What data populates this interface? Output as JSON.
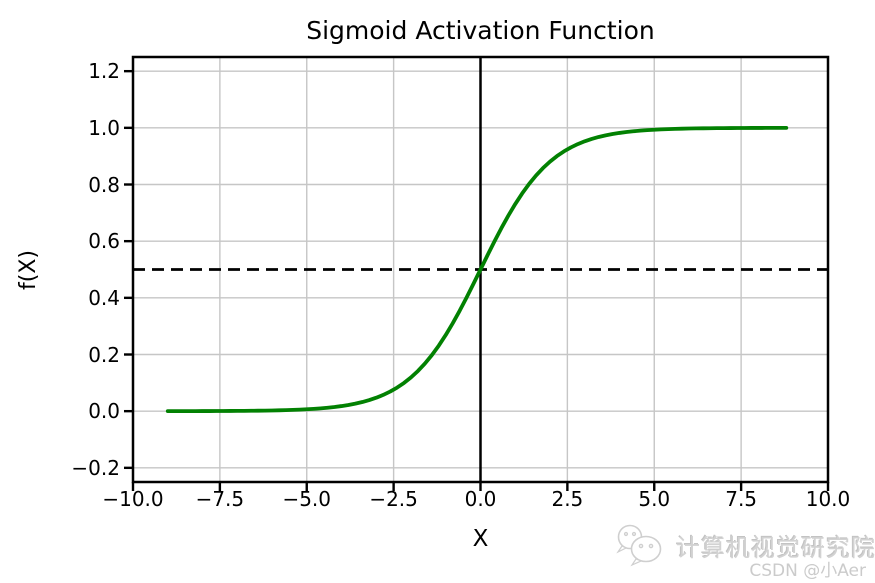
{
  "figure": {
    "background": "#ffffff"
  },
  "chart_data": {
    "type": "line",
    "title": "Sigmoid Activation Function",
    "xlabel": "X",
    "ylabel": "f(X)",
    "xlim": [
      -10,
      10
    ],
    "ylim": [
      -0.25,
      1.25
    ],
    "grid": true,
    "grid_color": "#c6c6c6",
    "axis_color": "#000000",
    "legend": "none",
    "xticks": {
      "values": [
        -10,
        -7.5,
        -5,
        -2.5,
        0,
        2.5,
        5,
        7.5,
        10
      ],
      "labels": [
        "−10.0",
        "−7.5",
        "−5.0",
        "−2.5",
        "0.0",
        "2.5",
        "5.0",
        "7.5",
        "10.0"
      ]
    },
    "yticks": {
      "values": [
        -0.2,
        0.0,
        0.2,
        0.4,
        0.6,
        0.8,
        1.0,
        1.2
      ],
      "labels": [
        "−0.2",
        "0.0",
        "0.2",
        "0.4",
        "0.6",
        "0.8",
        "1.0",
        "1.2"
      ]
    },
    "series": [
      {
        "name": "sigmoid",
        "function": "1/(1+exp(-x))",
        "x_start": -9.0,
        "x_end": 8.8,
        "x_step": 0.2,
        "color": "#028102",
        "linewidth": 3.8,
        "key_points": {
          "x": [
            -9,
            -8,
            -7,
            -6,
            -5,
            -4,
            -3,
            -2,
            -1,
            0,
            1,
            2,
            3,
            4,
            5,
            6,
            7,
            8,
            8.8
          ],
          "y": [
            0.0001,
            0.0003,
            0.0009,
            0.0025,
            0.0067,
            0.018,
            0.0474,
            0.1192,
            0.2689,
            0.5,
            0.7311,
            0.8808,
            0.9526,
            0.982,
            0.9933,
            0.9975,
            0.9991,
            0.9997,
            0.9998
          ]
        }
      }
    ],
    "ref_lines": [
      {
        "orientation": "vertical",
        "x": 0,
        "style": "solid",
        "color": "#000000",
        "width": 2.5
      },
      {
        "orientation": "horizontal",
        "y": 0.5,
        "style": "dashed",
        "color": "#000000",
        "width": 2.7,
        "dash": [
          12,
          7
        ]
      }
    ]
  },
  "watermark": {
    "icon": "wechat-bubbles-icon",
    "text": "计算机视觉研究院",
    "credit": "CSDN @小Aer",
    "color": "#d2d2d2"
  }
}
